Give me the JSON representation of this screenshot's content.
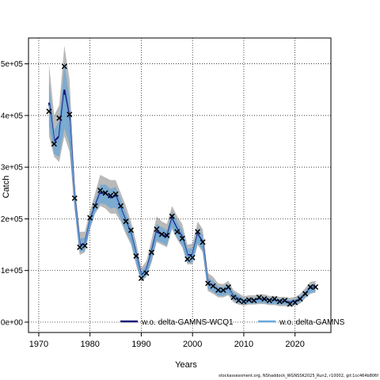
{
  "chart_data": {
    "type": "line",
    "xlabel": "Years",
    "ylabel": "Catch",
    "xlim": [
      1968,
      2027
    ],
    "ylim": [
      -20000,
      550000
    ],
    "xticks": [
      1970,
      1980,
      1990,
      2000,
      2010,
      2020
    ],
    "yticks": [
      0,
      100000,
      200000,
      300000,
      400000,
      500000
    ],
    "ytick_labels": [
      "0e+00",
      "1e+05",
      "2e+05",
      "3e+05",
      "4e+05",
      "5e+05"
    ],
    "grid": true,
    "legend_placement": "bottom",
    "x": [
      1972,
      1973,
      1974,
      1975,
      1976,
      1977,
      1978,
      1979,
      1980,
      1981,
      1982,
      1983,
      1984,
      1985,
      1986,
      1987,
      1988,
      1989,
      1990,
      1991,
      1992,
      1993,
      1994,
      1995,
      1996,
      1997,
      1998,
      1999,
      2000,
      2001,
      2002,
      2003,
      2004,
      2005,
      2006,
      2007,
      2008,
      2009,
      2010,
      2011,
      2012,
      2013,
      2014,
      2015,
      2016,
      2017,
      2018,
      2019,
      2020,
      2021,
      2022,
      2023,
      2024
    ],
    "series": [
      {
        "name": "w.o. delta-GAMNS-WCQ1",
        "color": "#1a1a7a",
        "values": [
          425000,
          350000,
          360000,
          450000,
          395000,
          240000,
          150000,
          150000,
          195000,
          225000,
          250000,
          250000,
          240000,
          245000,
          220000,
          195000,
          170000,
          130000,
          90000,
          100000,
          135000,
          175000,
          170000,
          165000,
          200000,
          180000,
          165000,
          130000,
          130000,
          170000,
          155000,
          75000,
          70000,
          60000,
          60000,
          65000,
          50000,
          45000,
          40000,
          42000,
          42000,
          44000,
          44000,
          42000,
          42000,
          40000,
          40000,
          38000,
          40000,
          45000,
          55000,
          65000,
          68000
        ],
        "lower": [
          360000,
          320000,
          310000,
          360000,
          330000,
          220000,
          130000,
          135000,
          180000,
          210000,
          225000,
          220000,
          210000,
          210000,
          195000,
          170000,
          150000,
          110000,
          78000,
          88000,
          115000,
          155000,
          150000,
          145000,
          180000,
          160000,
          145000,
          112000,
          112000,
          150000,
          135000,
          60000,
          55000,
          48000,
          48000,
          52000,
          38000,
          34000,
          32000,
          34000,
          34000,
          35000,
          35000,
          33000,
          33000,
          31000,
          31000,
          30000,
          32000,
          36000,
          46000,
          55000,
          57000
        ],
        "upper": [
          500000,
          400000,
          420000,
          535000,
          470000,
          270000,
          175000,
          175000,
          215000,
          250000,
          285000,
          280000,
          275000,
          275000,
          250000,
          225000,
          195000,
          155000,
          105000,
          118000,
          160000,
          205000,
          195000,
          190000,
          225000,
          205000,
          190000,
          150000,
          152000,
          195000,
          180000,
          95000,
          88000,
          75000,
          74000,
          80000,
          62000,
          56000,
          50000,
          52000,
          52000,
          54000,
          54000,
          51000,
          51000,
          49000,
          49000,
          47000,
          49000,
          55000,
          66000,
          78000,
          80000
        ]
      },
      {
        "name": "w.o. delta-GAMNS",
        "color": "#6aa7d8",
        "values": [
          420000,
          345000,
          352000,
          440000,
          388000,
          238000,
          148000,
          149000,
          193000,
          222000,
          247000,
          247000,
          238000,
          242000,
          218000,
          193000,
          168000,
          128000,
          88000,
          98000,
          132000,
          172000,
          167000,
          162000,
          197000,
          177000,
          162000,
          128000,
          128000,
          167000,
          152000,
          74000,
          69000,
          59000,
          59000,
          64000,
          49000,
          44000,
          39000,
          41000,
          41000,
          43000,
          43000,
          41000,
          41000,
          39000,
          39000,
          37000,
          39000,
          44000,
          54000,
          64000,
          67000
        ],
        "lower": [
          380000,
          325000,
          320000,
          375000,
          345000,
          222000,
          136000,
          138000,
          182000,
          212000,
          230000,
          228000,
          220000,
          222000,
          200000,
          176000,
          154000,
          114000,
          80000,
          89000,
          118000,
          158000,
          154000,
          148000,
          183000,
          163000,
          148000,
          115000,
          115000,
          153000,
          138000,
          64000,
          59000,
          51000,
          51000,
          55000,
          42000,
          37000,
          34000,
          36000,
          36000,
          37000,
          37000,
          35000,
          35000,
          34000,
          34000,
          32000,
          34000,
          38000,
          48000,
          57000,
          59000
        ],
        "upper": [
          465000,
          372000,
          390000,
          500000,
          435000,
          258000,
          162000,
          164000,
          208000,
          236000,
          266000,
          266000,
          258000,
          262000,
          238000,
          212000,
          184000,
          144000,
          98000,
          110000,
          148000,
          190000,
          184000,
          178000,
          214000,
          194000,
          178000,
          142000,
          143000,
          183000,
          168000,
          86000,
          80000,
          69000,
          68000,
          74000,
          57000,
          52000,
          45000,
          47000,
          47000,
          49000,
          49000,
          47000,
          47000,
          45000,
          45000,
          43000,
          45000,
          50000,
          61000,
          72000,
          75000
        ]
      }
    ],
    "observed": {
      "name": "observed catch",
      "values": [
        408000,
        345000,
        395000,
        495000,
        402000,
        240000,
        145000,
        148000,
        202000,
        225000,
        255000,
        250000,
        245000,
        248000,
        225000,
        195000,
        178000,
        128000,
        85000,
        95000,
        135000,
        180000,
        170000,
        168000,
        205000,
        175000,
        162000,
        122000,
        125000,
        175000,
        155000,
        75000,
        70000,
        62000,
        62000,
        68000,
        48000,
        42000,
        40000,
        43000,
        42000,
        48000,
        45000,
        42000,
        45000,
        40000,
        42000,
        35000,
        38000,
        45000,
        55000,
        68000,
        68000
      ]
    }
  },
  "footer_text": "stockassessment.org, NShaddock_WGNSSK2025_Run2, r10002, git:1cc464b806f"
}
